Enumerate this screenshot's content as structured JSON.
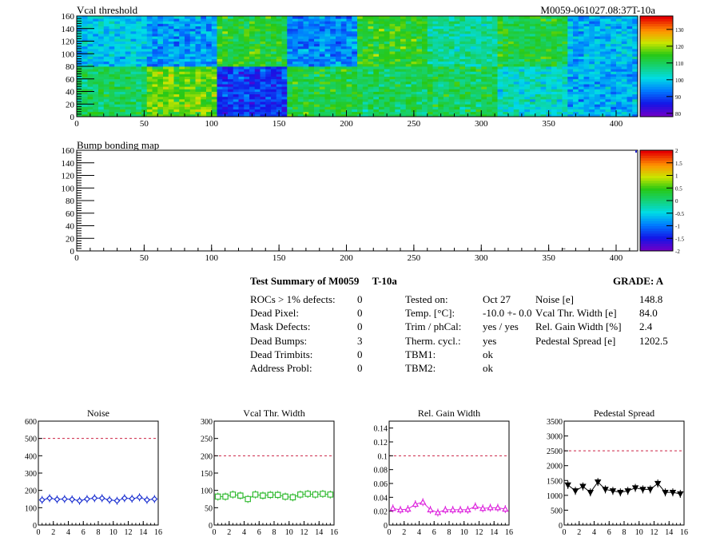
{
  "summary": {
    "title": "Test Summary of M0059",
    "temp_label": "T-10a",
    "grade": "GRADE:  A",
    "left": [
      {
        "label": "ROCs > 1% defects:",
        "value": "0"
      },
      {
        "label": "Dead Pixel:",
        "value": "0"
      },
      {
        "label": "Mask Defects:",
        "value": "0"
      },
      {
        "label": "Dead Bumps:",
        "value": "3"
      },
      {
        "label": "Dead Trimbits:",
        "value": "0"
      },
      {
        "label": "Address Probl:",
        "value": "0"
      }
    ],
    "middle": [
      {
        "label": "Tested on:",
        "value": "Oct 27"
      },
      {
        "label": "Temp. [°C]:",
        "value": "-10.0 +- 0.0"
      },
      {
        "label": "Trim / phCal:",
        "value": "yes / yes"
      },
      {
        "label": "Therm. cycl.:",
        "value": "yes"
      },
      {
        "label": "TBM1:",
        "value": "ok"
      },
      {
        "label": "TBM2:",
        "value": "ok"
      }
    ],
    "right": [
      {
        "label": "Noise [e]",
        "value": "148.8"
      },
      {
        "label": "Vcal Thr. Width [e]",
        "value": "84.0"
      },
      {
        "label": "Rel. Gain Width [%]",
        "value": "2.4"
      },
      {
        "label": "Pedestal Spread [e]",
        "value": "1202.5"
      }
    ]
  },
  "chart_data": [
    {
      "type": "heatmap",
      "title": "Vcal threshold",
      "id_label": "M0059-061027.08:37T-10a",
      "xlim": [
        0,
        416
      ],
      "ylim": [
        0,
        160
      ],
      "x_ticks": [
        "0",
        "50",
        "100",
        "150",
        "200",
        "250",
        "300",
        "350",
        "400"
      ],
      "y_ticks": [
        "0",
        "20",
        "40",
        "60",
        "80",
        "100",
        "120",
        "140",
        "160"
      ],
      "colorbar_ticks": [
        "80",
        "90",
        "100",
        "110",
        "120",
        "130"
      ],
      "colorbar_range": [
        78,
        138
      ],
      "roc_grid": {
        "columns": 8,
        "rows": 2,
        "top_row_means": [
          100,
          96,
          113,
          94,
          114,
          106,
          112,
          98
        ],
        "bottom_row_means": [
          110,
          118,
          88,
          112,
          110,
          110,
          103,
          97
        ]
      }
    },
    {
      "type": "heatmap",
      "title": "Bump bonding map",
      "xlim": [
        0,
        416
      ],
      "ylim": [
        0,
        160
      ],
      "x_ticks": [
        "0",
        "50",
        "100",
        "150",
        "200",
        "250",
        "300",
        "350",
        "400"
      ],
      "y_ticks": [
        "0",
        "20",
        "40",
        "60",
        "80",
        "100",
        "120",
        "140",
        "160"
      ],
      "colorbar_ticks": [
        "-2",
        "-1.5",
        "-1",
        "-0.5",
        "0",
        "0.5",
        "1",
        "1.5",
        "2"
      ],
      "colorbar_range": [
        -2,
        2
      ],
      "points": [
        {
          "x": 360,
          "y": 3
        }
      ]
    },
    {
      "type": "scatter",
      "title": "Noise",
      "xlim": [
        0,
        16
      ],
      "ylim": [
        0,
        600
      ],
      "x_ticks": [
        "0",
        "2",
        "4",
        "6",
        "8",
        "10",
        "12",
        "14",
        "16"
      ],
      "y_ticks": [
        "0",
        "100",
        "200",
        "300",
        "400",
        "500",
        "600"
      ],
      "threshold": 500,
      "color": "#1a2fd0",
      "marker": "diamond",
      "x": [
        0.5,
        1.5,
        2.5,
        3.5,
        4.5,
        5.5,
        6.5,
        7.5,
        8.5,
        9.5,
        10.5,
        11.5,
        12.5,
        13.5,
        14.5,
        15.5
      ],
      "values": [
        145,
        155,
        148,
        150,
        148,
        140,
        150,
        155,
        155,
        145,
        140,
        155,
        152,
        160,
        145,
        150
      ]
    },
    {
      "type": "scatter",
      "title": "Vcal Thr. Width",
      "xlim": [
        0,
        16
      ],
      "ylim": [
        0,
        300
      ],
      "x_ticks": [
        "0",
        "2",
        "4",
        "6",
        "8",
        "10",
        "12",
        "14",
        "16"
      ],
      "y_ticks": [
        "0",
        "50",
        "100",
        "150",
        "200",
        "250",
        "300"
      ],
      "threshold": 200,
      "color": "#33bb33",
      "marker": "square",
      "x": [
        0.5,
        1.5,
        2.5,
        3.5,
        4.5,
        5.5,
        6.5,
        7.5,
        8.5,
        9.5,
        10.5,
        11.5,
        12.5,
        13.5,
        14.5,
        15.5
      ],
      "values": [
        82,
        82,
        88,
        85,
        75,
        88,
        85,
        87,
        87,
        82,
        80,
        88,
        90,
        88,
        90,
        88
      ]
    },
    {
      "type": "scatter",
      "title": "Rel. Gain Width",
      "xlim": [
        0,
        16
      ],
      "ylim": [
        0,
        0.15
      ],
      "x_ticks": [
        "0",
        "2",
        "4",
        "6",
        "8",
        "10",
        "12",
        "14",
        "16"
      ],
      "y_ticks": [
        "0",
        "0.02",
        "0.04",
        "0.06",
        "0.08",
        "0.1",
        "0.12",
        "0.14"
      ],
      "threshold": 0.1,
      "color": "#dd22dd",
      "marker": "triangle",
      "x": [
        0.5,
        1.5,
        2.5,
        3.5,
        4.5,
        5.5,
        6.5,
        7.5,
        8.5,
        9.5,
        10.5,
        11.5,
        12.5,
        13.5,
        14.5,
        15.5
      ],
      "values": [
        0.024,
        0.022,
        0.023,
        0.03,
        0.033,
        0.022,
        0.018,
        0.022,
        0.022,
        0.022,
        0.022,
        0.027,
        0.024,
        0.025,
        0.025,
        0.023
      ]
    },
    {
      "type": "scatter",
      "title": "Pedestal Spread",
      "xlim": [
        0,
        16
      ],
      "ylim": [
        0,
        3500
      ],
      "x_ticks": [
        "0",
        "2",
        "4",
        "6",
        "8",
        "10",
        "12",
        "14",
        "16"
      ],
      "y_ticks": [
        "0",
        "500",
        "1000",
        "1500",
        "2000",
        "2500",
        "3000",
        "3500"
      ],
      "threshold": 2500,
      "color": "#000000",
      "marker": "triangle-down",
      "x": [
        0.5,
        1.5,
        2.5,
        3.5,
        4.5,
        5.5,
        6.5,
        7.5,
        8.5,
        9.5,
        10.5,
        11.5,
        12.5,
        13.5,
        14.5,
        15.5
      ],
      "values": [
        1350,
        1150,
        1300,
        1100,
        1450,
        1200,
        1150,
        1100,
        1150,
        1250,
        1200,
        1200,
        1400,
        1100,
        1100,
        1050
      ]
    }
  ]
}
